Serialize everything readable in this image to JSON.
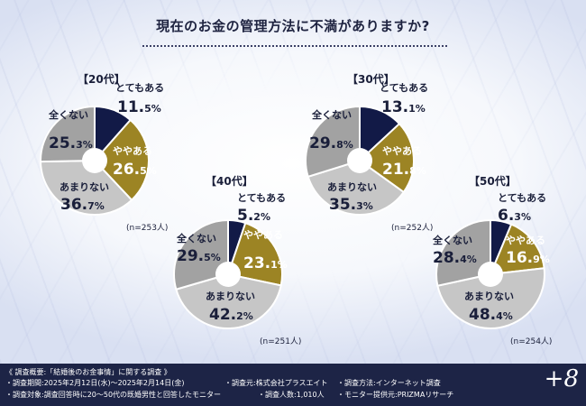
{
  "title": "現在のお金の管理方法に不満がありますか?",
  "chart_data": [
    {
      "type": "pie",
      "group": "【20代】",
      "n_label": "(n=253人)",
      "categories": [
        "とてもある",
        "ややある",
        "あまりない",
        "全くない"
      ],
      "values": [
        11.5,
        26.5,
        36.7,
        25.3
      ]
    },
    {
      "type": "pie",
      "group": "【30代】",
      "n_label": "(n=252人)",
      "categories": [
        "とてもある",
        "ややある",
        "あまりない",
        "全くない"
      ],
      "values": [
        13.1,
        21.8,
        35.3,
        29.8
      ]
    },
    {
      "type": "pie",
      "group": "【40代】",
      "n_label": "(n=251人)",
      "categories": [
        "とてもある",
        "ややある",
        "あまりない",
        "全くない"
      ],
      "values": [
        5.2,
        23.1,
        42.2,
        29.5
      ]
    },
    {
      "type": "pie",
      "group": "【50代】",
      "n_label": "(n=254人)",
      "categories": [
        "とてもある",
        "ややある",
        "あまりない",
        "全くない"
      ],
      "values": [
        6.3,
        16.9,
        48.4,
        28.4
      ]
    }
  ],
  "colors": [
    "#121a47",
    "#9c8424",
    "#c6c6c6",
    "#a2a2a2"
  ],
  "footer": {
    "heading": "《 調査概要:「結婚後のお金事情」に関する調査 》",
    "period": "・調査期間:2025年2月12日(水)〜2025年2月14日(金)",
    "source": "・調査元:株式会社プラスエイト",
    "method": "・調査方法:インターネット調査",
    "target": "・調査対象:調査回答時に20〜50代の既婚男性と回答したモニター",
    "count": "・調査人数:1,010人",
    "provider": "・モニター提供元:PRIZMAリサーチ"
  },
  "brand": "+8"
}
